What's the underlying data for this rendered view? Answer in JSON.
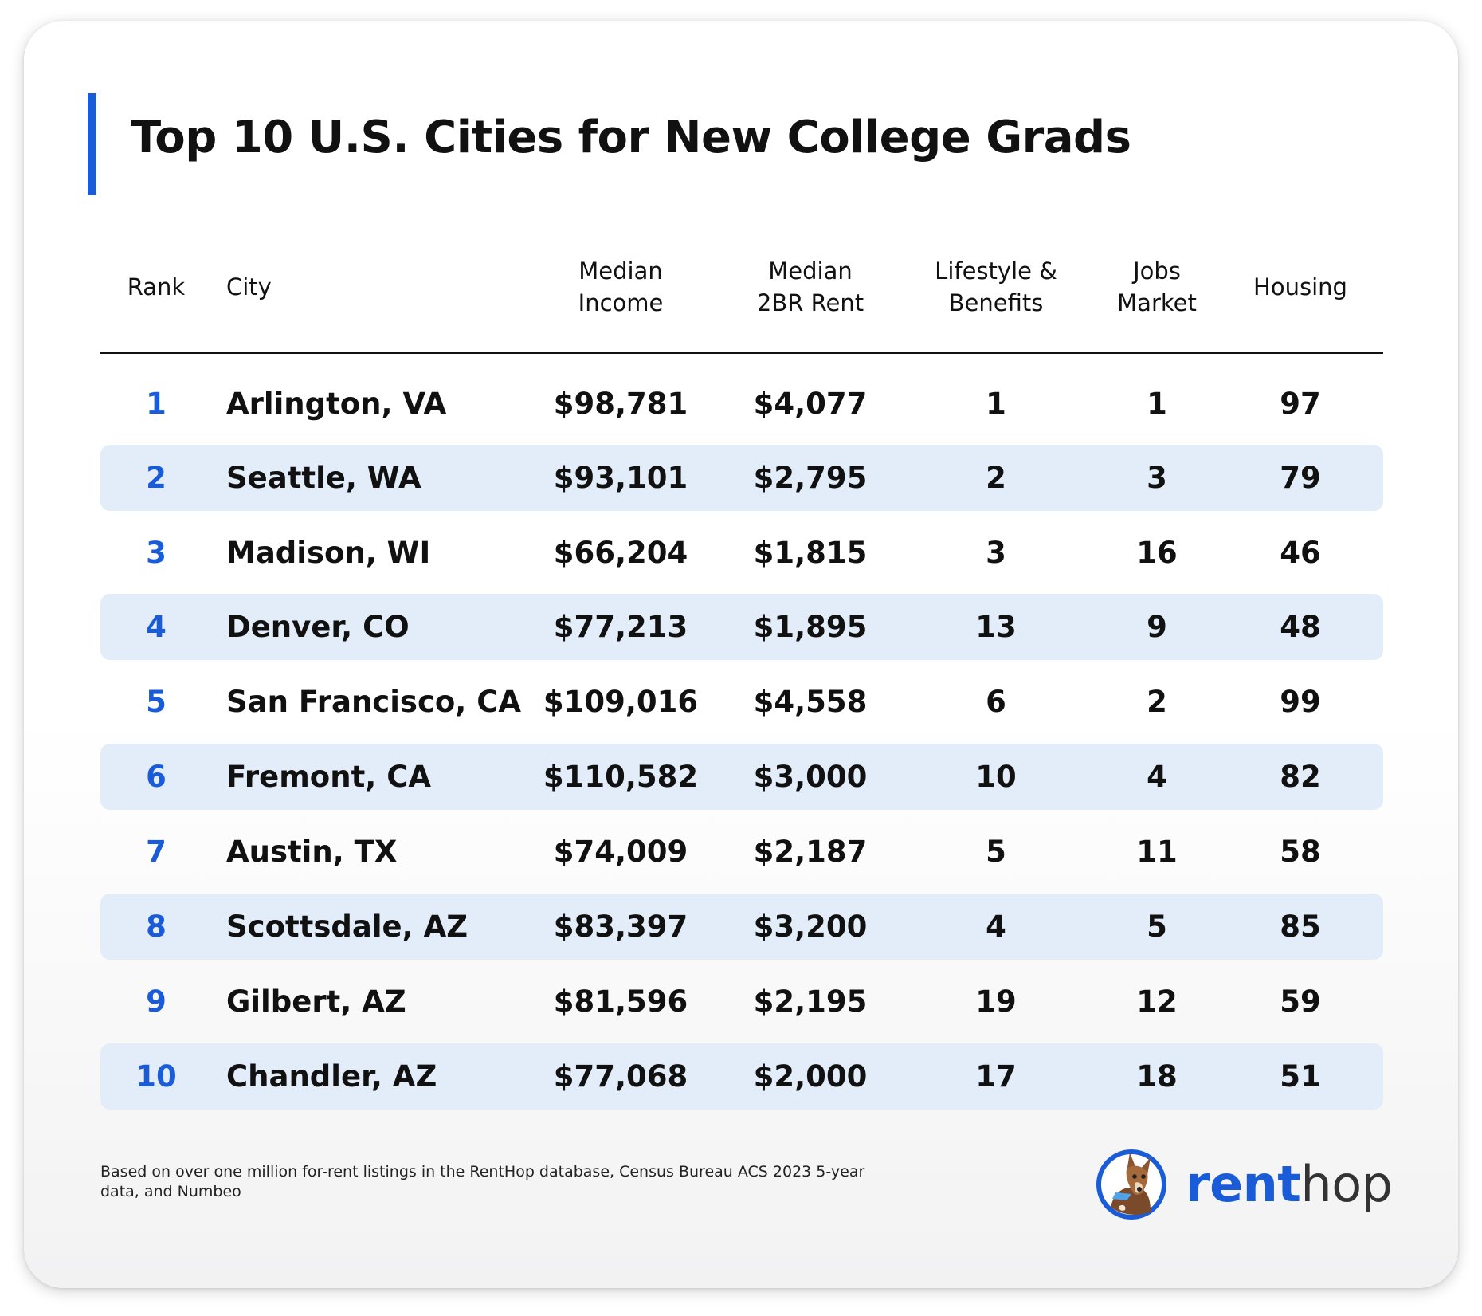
{
  "title": "Top 10 U.S. Cities for New College Grads",
  "columns": {
    "rank": "Rank",
    "city": "City",
    "income_l1": "Median",
    "income_l2": "Income",
    "rent_l1": "Median",
    "rent_l2": "2BR Rent",
    "lifestyle_l1": "Lifestyle &",
    "lifestyle_l2": "Benefits",
    "jobs_l1": "Jobs",
    "jobs_l2": "Market",
    "housing": "Housing"
  },
  "rows": [
    {
      "rank": "1",
      "city": "Arlington, VA",
      "income": "$98,781",
      "rent": "$4,077",
      "lifestyle": "1",
      "jobs": "1",
      "housing": "97"
    },
    {
      "rank": "2",
      "city": "Seattle, WA",
      "income": "$93,101",
      "rent": "$2,795",
      "lifestyle": "2",
      "jobs": "3",
      "housing": "79"
    },
    {
      "rank": "3",
      "city": "Madison, WI",
      "income": "$66,204",
      "rent": "$1,815",
      "lifestyle": "3",
      "jobs": "16",
      "housing": "46"
    },
    {
      "rank": "4",
      "city": "Denver, CO",
      "income": "$77,213",
      "rent": "$1,895",
      "lifestyle": "13",
      "jobs": "9",
      "housing": "48"
    },
    {
      "rank": "5",
      "city": "San Francisco, CA",
      "income": "$109,016",
      "rent": "$4,558",
      "lifestyle": "6",
      "jobs": "2",
      "housing": "99"
    },
    {
      "rank": "6",
      "city": "Fremont, CA",
      "income": "$110,582",
      "rent": "$3,000",
      "lifestyle": "10",
      "jobs": "4",
      "housing": "82"
    },
    {
      "rank": "7",
      "city": "Austin, TX",
      "income": "$74,009",
      "rent": "$2,187",
      "lifestyle": "5",
      "jobs": "11",
      "housing": "58"
    },
    {
      "rank": "8",
      "city": "Scottsdale, AZ",
      "income": "$83,397",
      "rent": "$3,200",
      "lifestyle": "4",
      "jobs": "5",
      "housing": "85"
    },
    {
      "rank": "9",
      "city": "Gilbert, AZ",
      "income": "$81,596",
      "rent": "$2,195",
      "lifestyle": "19",
      "jobs": "12",
      "housing": "59"
    },
    {
      "rank": "10",
      "city": "Chandler, AZ",
      "income": "$77,068",
      "rent": "$2,000",
      "lifestyle": "17",
      "jobs": "18",
      "housing": "51"
    }
  ],
  "footnote": "Based on over one million for-rent listings in the RentHop database, Census Bureau ACS 2023 5-year data, and Numbeo",
  "logo": {
    "icon": "dog-mascot-icon",
    "word_part1": "rent",
    "word_part2": "hop"
  },
  "colors": {
    "accent": "#1a5cd8",
    "row_shade": "#e3edf9",
    "text": "#111111"
  }
}
